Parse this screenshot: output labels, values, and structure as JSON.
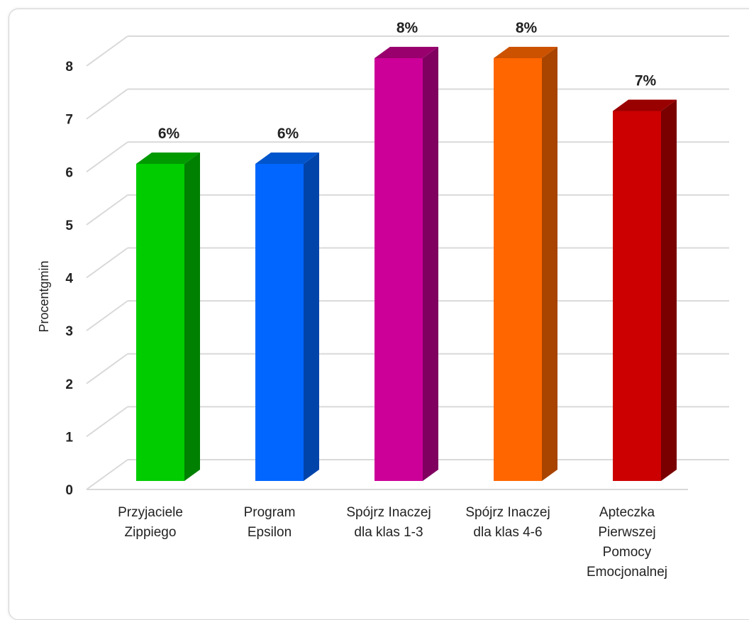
{
  "chart_data": {
    "type": "bar",
    "style": "3d-columns",
    "ylabel": "Procentgmin",
    "xlabel": "",
    "ylim": [
      0,
      8
    ],
    "yticks": [
      "0",
      "1",
      "2",
      "3",
      "4",
      "5",
      "6",
      "7",
      "8"
    ],
    "grid": true,
    "legend": "none",
    "categories": [
      [
        "Przyjaciele",
        "Zippiego"
      ],
      [
        "Program",
        "Epsilon"
      ],
      [
        "Spójrz Inaczej",
        "dla klas 1-3"
      ],
      [
        "Spójrz Inaczej",
        "dla klas 4-6"
      ],
      [
        "Apteczka",
        "Pierwszej",
        "Pomocy",
        "Emocjonalnej"
      ]
    ],
    "values": [
      6,
      6,
      8,
      8,
      7
    ],
    "data_labels": [
      "6%",
      "6%",
      "8%",
      "8%",
      "7%"
    ],
    "colors": [
      {
        "front": "#00cc00",
        "side": "#008000",
        "top": "#009900"
      },
      {
        "front": "#0066ff",
        "side": "#0044aa",
        "top": "#0055cc"
      },
      {
        "front": "#cc0099",
        "side": "#800060",
        "top": "#99006e"
      },
      {
        "front": "#ff6600",
        "side": "#a84400",
        "top": "#cc5200"
      },
      {
        "front": "#cc0000",
        "side": "#7a0000",
        "top": "#990000"
      }
    ]
  }
}
